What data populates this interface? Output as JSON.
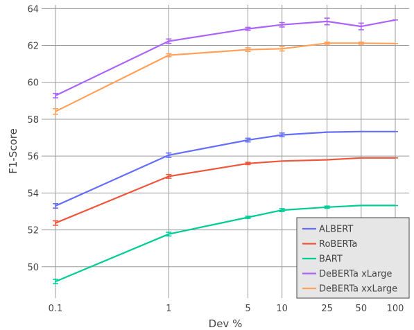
{
  "chart_data": {
    "type": "line",
    "xlabel": "Dev %",
    "ylabel": "F1-Score",
    "x_scale": "log",
    "x": [
      0.1,
      1,
      5,
      10,
      25,
      50,
      100
    ],
    "x_tick_labels": [
      "0.1",
      "1",
      "5",
      "10",
      "25",
      "50",
      "100"
    ],
    "ylim": [
      48.3,
      64.2
    ],
    "y_ticks": [
      50,
      52,
      54,
      56,
      58,
      60,
      62,
      64
    ],
    "grid": true,
    "legend_position": "bottom-right",
    "error_bars": true,
    "series": [
      {
        "name": "ALBERT",
        "color": "#636efa",
        "values": [
          53.3,
          56.05,
          56.87,
          57.15,
          57.3,
          57.33,
          57.33
        ],
        "errors": [
          0.12,
          0.12,
          0.1,
          0.1,
          0,
          0,
          0
        ]
      },
      {
        "name": "RoBERTa",
        "color": "#ef553b",
        "values": [
          52.37,
          54.9,
          55.6,
          55.73,
          55.8,
          55.9,
          55.9
        ],
        "errors": [
          0.12,
          0.1,
          0.06,
          0,
          0,
          0,
          0
        ]
      },
      {
        "name": "BART",
        "color": "#00cc96",
        "values": [
          49.2,
          51.77,
          52.68,
          53.07,
          53.23,
          53.32,
          53.32
        ],
        "errors": [
          0.12,
          0.1,
          0.06,
          0.08,
          0.06,
          0,
          0
        ]
      },
      {
        "name": "DeBERTa xLarge",
        "color": "#ab63fa",
        "values": [
          59.28,
          62.23,
          62.9,
          63.12,
          63.3,
          63.03,
          63.38
        ],
        "errors": [
          0.12,
          0.12,
          0.08,
          0.12,
          0.18,
          0.18,
          0
        ]
      },
      {
        "name": "DeBERTa xxLarge",
        "color": "#ffa15a",
        "values": [
          58.42,
          61.47,
          61.77,
          61.82,
          62.12,
          62.12,
          62.1
        ],
        "errors": [
          0.15,
          0.08,
          0.1,
          0.12,
          0.06,
          0.06,
          0
        ]
      }
    ]
  }
}
